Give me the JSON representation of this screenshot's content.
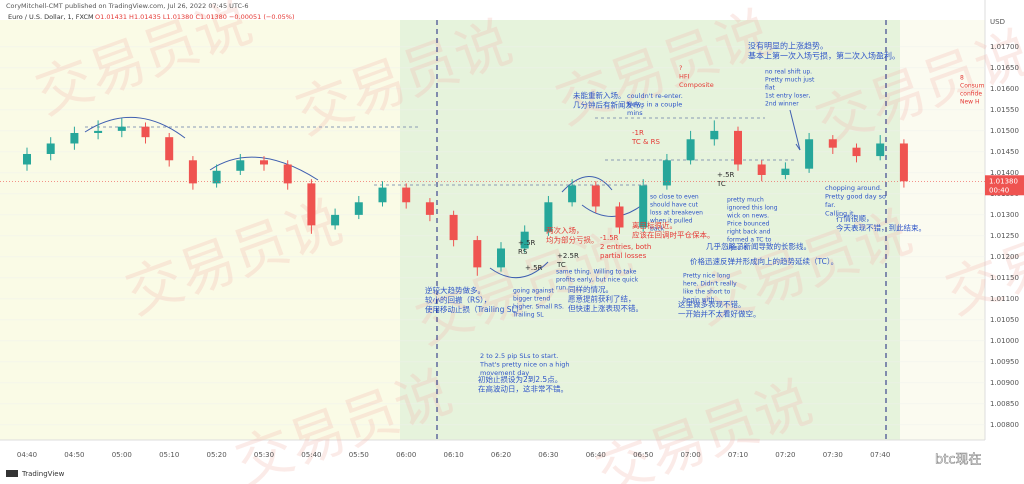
{
  "chart_data": {
    "type": "candlestick",
    "publisher": "CoryMitchell-CMT published on TradingView.com, Jul 26, 2022 07:45 UTC-6",
    "symbol": "Euro / U.S. Dollar, 1, FXCM",
    "ohlc_summary": "O1.01431 H1.01435 L1.01380 C1.01380 −0.00051 (−0.05%)",
    "currency": "USD",
    "branding": "TradingView",
    "watermark": "交易员说",
    "source_watermark": "btc现在",
    "up_color": "#26a69a",
    "down_color": "#ef5350",
    "last_price": {
      "value": 1.0138,
      "label": "1.01380"
    },
    "countdown": "00:40",
    "categories": [
      "04:40",
      null,
      "04:50",
      null,
      "05:00",
      null,
      "05:10",
      null,
      "05:20",
      null,
      "05:30",
      null,
      "05:40",
      null,
      "05:50",
      null,
      "06:00",
      null,
      "06:10",
      null,
      "06:20",
      null,
      "06:30",
      null,
      "06:40",
      null,
      "06:50",
      null,
      "07:00",
      null,
      "07:10",
      null,
      "07:20",
      null,
      "07:30",
      null,
      "07:40",
      null
    ],
    "open": [
      1.0142,
      1.01445,
      1.0147,
      1.01495,
      1.015,
      1.0151,
      1.01485,
      1.0143,
      1.01375,
      1.01405,
      1.0143,
      1.0142,
      1.01375,
      1.01275,
      1.013,
      1.0133,
      1.01365,
      1.0133,
      1.013,
      1.0124,
      1.01175,
      1.0122,
      1.0126,
      1.0133,
      1.0137,
      1.0132,
      1.0127,
      1.0137,
      1.0143,
      1.0148,
      1.015,
      1.0142,
      1.01395,
      1.0141,
      1.0148,
      1.0146,
      1.0144,
      1.0147
    ],
    "high": [
      1.0146,
      1.01485,
      1.0151,
      1.01525,
      1.0153,
      1.0152,
      1.01495,
      1.0144,
      1.0142,
      1.01445,
      1.0144,
      1.0143,
      1.01385,
      1.01315,
      1.01345,
      1.0138,
      1.01375,
      1.0134,
      1.0131,
      1.0125,
      1.01235,
      1.01275,
      1.01345,
      1.01385,
      1.0138,
      1.0133,
      1.01385,
      1.01445,
      1.015,
      1.01525,
      1.0151,
      1.0143,
      1.01425,
      1.01495,
      1.0149,
      1.0147,
      1.0149,
      1.0148
    ],
    "low": [
      1.01405,
      1.0143,
      1.01455,
      1.0148,
      1.01485,
      1.0147,
      1.01415,
      1.0136,
      1.01365,
      1.01395,
      1.01405,
      1.0136,
      1.01255,
      1.01265,
      1.0129,
      1.0132,
      1.01315,
      1.01285,
      1.01225,
      1.01155,
      1.01165,
      1.0121,
      1.0125,
      1.0132,
      1.01305,
      1.01255,
      1.0126,
      1.0136,
      1.0142,
      1.01465,
      1.01405,
      1.0138,
      1.01385,
      1.014,
      1.01445,
      1.01425,
      1.0143,
      1.01365
    ],
    "close": [
      1.01445,
      1.0147,
      1.01495,
      1.015,
      1.0151,
      1.01485,
      1.0143,
      1.01375,
      1.01405,
      1.0143,
      1.0142,
      1.01375,
      1.01275,
      1.013,
      1.0133,
      1.01365,
      1.0133,
      1.013,
      1.0124,
      1.01175,
      1.0122,
      1.0126,
      1.0133,
      1.0137,
      1.0132,
      1.0127,
      1.0137,
      1.0143,
      1.0148,
      1.015,
      1.0142,
      1.01395,
      1.0141,
      1.0148,
      1.0146,
      1.0144,
      1.0147,
      1.0138
    ],
    "ylim": [
      1.00764,
      1.01764
    ],
    "yticks": [
      {
        "value": 1.017,
        "label": "1.01700"
      },
      {
        "value": 1.0165,
        "label": "1.01650"
      },
      {
        "value": 1.016,
        "label": "1.01600"
      },
      {
        "value": 1.0155,
        "label": "1.01550"
      },
      {
        "value": 1.015,
        "label": "1.01500"
      },
      {
        "value": 1.0145,
        "label": "1.01450"
      },
      {
        "value": 1.014,
        "label": "1.01400"
      },
      {
        "value": 1.0135,
        "label": "1.01350"
      },
      {
        "value": 1.013,
        "label": "1.01300"
      },
      {
        "value": 1.0125,
        "label": "1.01250"
      },
      {
        "value": 1.012,
        "label": "1.01200"
      },
      {
        "value": 1.0115,
        "label": "1.01150"
      },
      {
        "value": 1.011,
        "label": "1.01100"
      },
      {
        "value": 1.0105,
        "label": "1.01050"
      },
      {
        "value": 1.01,
        "label": "1.01000"
      },
      {
        "value": 1.0095,
        "label": "1.00950"
      },
      {
        "value": 1.009,
        "label": "1.00900"
      },
      {
        "value": 1.0085,
        "label": "1.00850"
      },
      {
        "value": 1.008,
        "label": "1.00800"
      }
    ],
    "annotations": [
      {
        "lines": [
          "没有明显的上涨趋势。",
          "基本上第一次入场亏损，第二次入场盈利。"
        ]
      },
      {
        "lines": [
          "no real shift up.",
          "Pretty much just",
          "flat",
          "1st entry loser,",
          "2nd winner"
        ]
      },
      {
        "lines": [
          "未能重新入场。",
          "几分钟后有新闻发布。"
        ]
      },
      {
        "lines": [
          "couldn't re-enter.",
          "News in a couple",
          "mins"
        ]
      },
      {
        "lines": [
          "?",
          "HFI",
          "Composite"
        ]
      },
      {
        "lines": [
          "-1R",
          "TC & RS"
        ]
      },
      {
        "lines": [
          "+.5R",
          "TC"
        ]
      },
      {
        "lines": [
          "so close to even",
          "should have cut",
          "loss at breakeven",
          "when it pulled",
          "back"
        ]
      },
      {
        "lines": [
          "两次入场，",
          "均为部分亏损。"
        ]
      },
      {
        "lines": [
          "-1.5R",
          "2 entries, both",
          "partial losses"
        ]
      },
      {
        "lines": [
          "离目标很近。",
          "应该在回调时平仓保本。"
        ]
      },
      {
        "lines": [
          "pretty much",
          "ignored this long",
          "wick on news.",
          "Price bounced",
          "right back and",
          "formed a TC to",
          "upside."
        ]
      },
      {
        "lines": [
          "几乎忽略了新闻导致的长影线。"
        ]
      },
      {
        "lines": [
          "价格迅速反弹并形成向上的趋势延续（TC）。"
        ]
      },
      {
        "lines": [
          "chopping around.",
          "Pretty good day so",
          "far.",
          "Calling it."
        ]
      },
      {
        "lines": [
          "行情很顺，",
          "今天表现不错，到此结束。"
        ]
      },
      {
        "lines": [
          "+.5R",
          "RS"
        ]
      },
      {
        "lines": [
          "+.5R"
        ]
      },
      {
        "lines": [
          "+2.5R",
          "TC"
        ]
      },
      {
        "lines": [
          "same thing. Willing to take",
          "profits early, but nice quick",
          "run."
        ]
      },
      {
        "lines": [
          "同样的情况。",
          "愿意提前获利了结，",
          "但快速上涨表现不错。"
        ]
      },
      {
        "lines": [
          "going against",
          "bigger trend",
          "higher. Small RS.",
          "Trailing SL"
        ]
      },
      {
        "lines": [
          "逆较大趋势做多。",
          "较小的回撤（RS），",
          "使用移动止损（Trailing SL）"
        ]
      },
      {
        "lines": [
          "Pretty nice long",
          "here. Didn't really",
          "like the short to",
          "begin with."
        ]
      },
      {
        "lines": [
          "这里做多表现不错。",
          "一开始并不太看好做空。"
        ]
      },
      {
        "lines": [
          "2 to 2.5 pip SLs to start.",
          "That's pretty nice on a high",
          "movement day"
        ]
      },
      {
        "lines": [
          "初始止损设为2到2.5点。",
          "在高波动日，这非常不错。"
        ]
      },
      {
        "lines": [
          "8",
          "Consum",
          "confide",
          "New H"
        ]
      }
    ]
  }
}
